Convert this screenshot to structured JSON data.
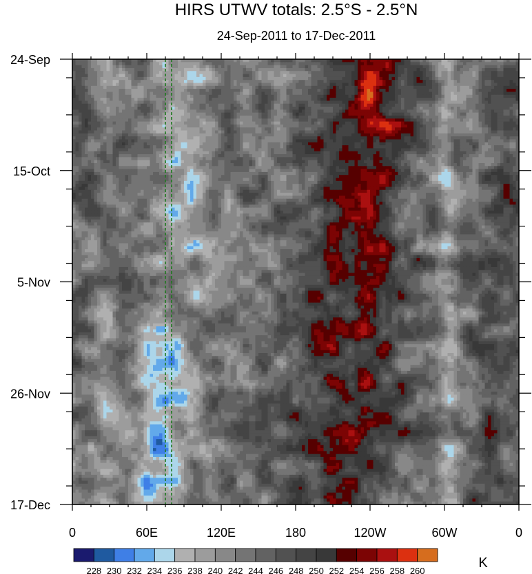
{
  "chart_data": {
    "type": "heatmap",
    "title": "HIRS UTWV totals: 2.5°S - 2.5°N",
    "subtitle": "24-Sep-2011 to 17-Dec-2011",
    "x_tick_labels": [
      "0",
      "60E",
      "120E",
      "180",
      "120W",
      "60W",
      "0"
    ],
    "x_ticks_deg": [
      0,
      60,
      120,
      180,
      240,
      300,
      360
    ],
    "y_tick_labels": [
      "24-Sep",
      "15-Oct",
      "5-Nov",
      "26-Nov",
      "17-Dec"
    ],
    "y_ticks_day": [
      0,
      21,
      42,
      63,
      84
    ],
    "ylim_days": [
      0,
      84
    ],
    "colorbar": {
      "unit": "K",
      "levels": [
        228,
        230,
        232,
        234,
        236,
        238,
        240,
        242,
        244,
        246,
        248,
        250,
        252,
        254,
        256,
        258,
        260
      ],
      "colors": [
        "#1a1a6e",
        "#1f5aa0",
        "#3f7fe6",
        "#62a9ea",
        "#acd6ea",
        "#b0b0b0",
        "#9c9c9c",
        "#888888",
        "#747474",
        "#626262",
        "#515151",
        "#444444",
        "#383838",
        "#560000",
        "#7c0404",
        "#aa1010",
        "#dc3010",
        "#d66d1e"
      ]
    },
    "reference_lines_deg": [
      75,
      80
    ],
    "reference_line_color": "#1e7a1e"
  }
}
